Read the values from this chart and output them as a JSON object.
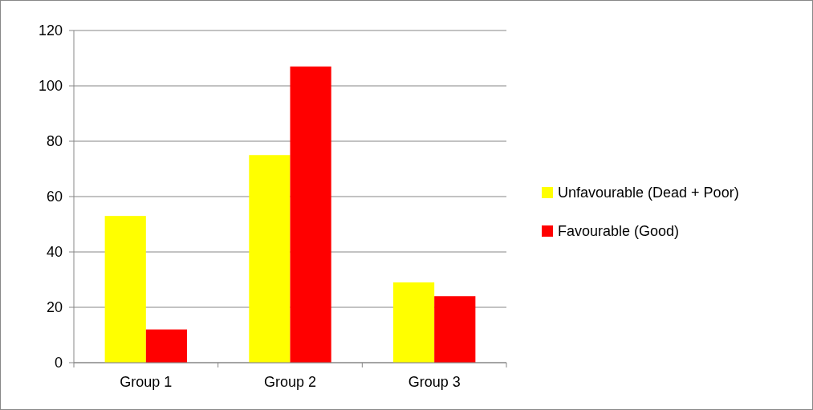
{
  "chart_data": {
    "type": "bar",
    "categories": [
      "Group 1",
      "Group 2",
      "Group 3"
    ],
    "series": [
      {
        "name": "Unfavourable (Dead + Poor)",
        "color": "#ffff00",
        "values": [
          53,
          75,
          29
        ]
      },
      {
        "name": "Favourable (Good)",
        "color": "#ff0000",
        "values": [
          12,
          107,
          24
        ]
      }
    ],
    "ylim": [
      0,
      120
    ],
    "yticks": [
      0,
      20,
      40,
      60,
      80,
      100,
      120
    ],
    "grid": "y",
    "legend": "right"
  }
}
